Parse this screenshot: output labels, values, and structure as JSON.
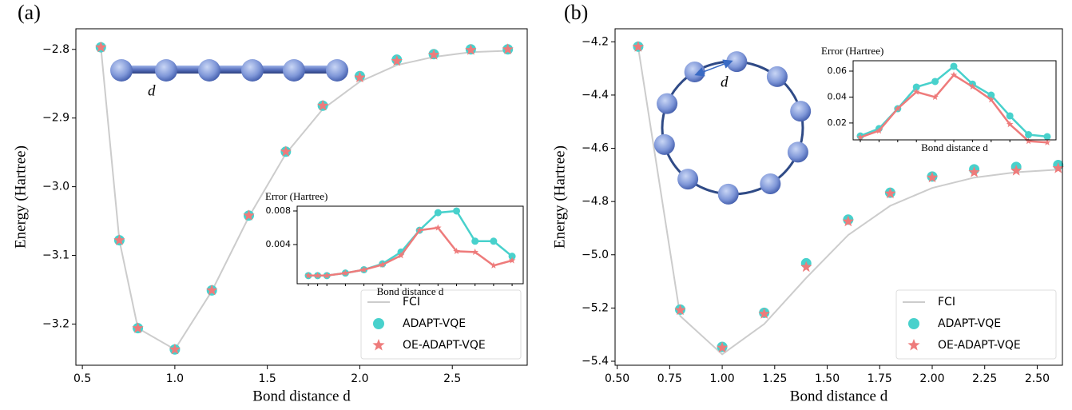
{
  "chart_data": [
    {
      "type": "line",
      "panel_label": "(a)",
      "annotation": "d",
      "xlabel": "Bond distance d",
      "ylabel": "Energy (Hartree)",
      "x": [
        0.6,
        0.7,
        0.8,
        1.0,
        1.2,
        1.4,
        1.6,
        1.8,
        2.0,
        2.2,
        2.4,
        2.6,
        2.8
      ],
      "xlim": [
        0.465,
        2.905
      ],
      "ylim": [
        -3.26,
        -2.77
      ],
      "xticks": [
        0.5,
        {
          "value": 1.0,
          "label": "1.0"
        },
        1.5,
        {
          "value": 2.0,
          "label": "2.0"
        },
        2.5
      ],
      "yticks": [
        {
          "value": -2.8,
          "label": "−2.8"
        },
        {
          "value": -2.9,
          "label": "−2.9"
        },
        {
          "value": -3.0,
          "label": "−3.0"
        },
        {
          "value": -3.1,
          "label": "−3.1"
        },
        {
          "value": -3.2,
          "label": "−3.2"
        }
      ],
      "legend": "lower right",
      "series": [
        {
          "name": "FCI",
          "color": "#cccccc",
          "line": true,
          "marker": null,
          "values": [
            -2.797,
            -3.078,
            -3.206,
            -3.237,
            -3.152,
            -3.044,
            -2.952,
            -2.887,
            -2.847,
            -2.823,
            -2.811,
            -2.804,
            -2.802
          ]
        },
        {
          "name": "ADAPT-VQE",
          "color": "#48d1cc",
          "line": false,
          "marker": "circle",
          "values": [
            -2.797,
            -3.078,
            -3.206,
            -3.237,
            -3.151,
            -3.042,
            -2.949,
            -2.882,
            -2.839,
            -2.815,
            -2.807,
            -2.8,
            -2.8
          ]
        },
        {
          "name": "OE-ADAPT-VQE",
          "color": "#ee7b7b",
          "line": false,
          "marker": "star",
          "values": [
            -2.797,
            -3.078,
            -3.206,
            -3.237,
            -3.151,
            -3.042,
            -2.949,
            -2.882,
            -2.841,
            -2.817,
            -2.808,
            -2.801,
            -2.8
          ]
        }
      ]
    },
    {
      "type": "line",
      "title": "Error (Hartree)",
      "xlabel": "Bond distance d",
      "x": [
        0.6,
        0.7,
        0.8,
        1.0,
        1.2,
        1.4,
        1.6,
        1.8,
        2.0,
        2.2,
        2.4,
        2.6,
        2.8
      ],
      "xlim": [
        0.479,
        2.92
      ],
      "ylim": [
        -0.00067,
        0.00857
      ],
      "yticks": [
        0.004,
        0.008
      ],
      "series": [
        {
          "color": "#48d1cc",
          "line": true,
          "marker": "circle",
          "values": [
            0.0003,
            0.0003,
            0.0003,
            0.0006,
            0.001,
            0.0017,
            0.0031,
            0.0057,
            0.0078,
            0.008,
            0.0044,
            0.0044,
            0.0026
          ]
        },
        {
          "color": "#ee7b7b",
          "line": true,
          "marker": "star",
          "values": [
            0.0003,
            0.0003,
            0.0003,
            0.0006,
            0.001,
            0.0016,
            0.0027,
            0.0057,
            0.006,
            0.0032,
            0.0031,
            0.0015,
            0.0021
          ]
        }
      ]
    },
    {
      "type": "line",
      "panel_label": "(b)",
      "annotation": "d",
      "xlabel": "Bond distance d",
      "ylabel": "Energy (Hartree)",
      "x": [
        0.6,
        0.8,
        1.0,
        1.2,
        1.4,
        1.6,
        1.8,
        2.0,
        2.2,
        2.4,
        2.6
      ],
      "xlim": [
        0.49,
        2.62
      ],
      "ylim": [
        -5.415,
        -4.151
      ],
      "xticks": [
        {
          "value": 0.5,
          "label": "0.50"
        },
        0.75,
        {
          "value": 1.0,
          "label": "1.00"
        },
        1.25,
        {
          "value": 1.5,
          "label": "1.50"
        },
        1.75,
        {
          "value": 2.0,
          "label": "2.00"
        },
        2.25,
        {
          "value": 2.5,
          "label": "2.50"
        }
      ],
      "yticks": [
        {
          "value": -4.2,
          "label": "−4.2"
        },
        {
          "value": -4.4,
          "label": "−4.4"
        },
        {
          "value": -4.6,
          "label": "−4.6"
        },
        {
          "value": -4.8,
          "label": "−4.8"
        },
        {
          "value": -5.0,
          "label": "−5.0"
        },
        {
          "value": -5.2,
          "label": "−5.2"
        },
        {
          "value": -5.4,
          "label": "−5.4"
        }
      ],
      "legend": "lower right",
      "series": [
        {
          "name": "FCI",
          "color": "#cccccc",
          "line": true,
          "marker": null,
          "values": [
            -4.22,
            -5.23,
            -5.374,
            -5.26,
            -5.087,
            -4.926,
            -4.816,
            -4.749,
            -4.71,
            -4.69,
            -4.68
          ]
        },
        {
          "name": "ADAPT-VQE",
          "color": "#48d1cc",
          "line": false,
          "marker": "circle",
          "values": [
            -4.218,
            -5.206,
            -5.346,
            -5.218,
            -5.032,
            -4.868,
            -4.767,
            -4.706,
            -4.679,
            -4.67,
            -4.663
          ]
        },
        {
          "name": "OE-ADAPT-VQE",
          "color": "#ee7b7b",
          "line": false,
          "marker": "star",
          "values": [
            -4.219,
            -5.208,
            -5.349,
            -5.222,
            -5.046,
            -4.875,
            -4.77,
            -4.71,
            -4.69,
            -4.684,
            -4.675
          ]
        }
      ]
    },
    {
      "type": "line",
      "title": "Error (Hartree)",
      "xlabel": "Bond distance d",
      "x": [
        0.6,
        0.8,
        1.0,
        1.2,
        1.4,
        1.6,
        1.8,
        2.0,
        2.2,
        2.4,
        2.6
      ],
      "xlim": [
        0.523,
        2.694
      ],
      "ylim": [
        0.007,
        0.068
      ],
      "yticks": [
        0.02,
        0.04,
        0.06
      ],
      "series": [
        {
          "color": "#48d1cc",
          "line": true,
          "marker": "circle",
          "values": [
            0.01,
            0.0157,
            0.031,
            0.0477,
            0.052,
            0.0637,
            0.05,
            0.0415,
            0.0255,
            0.011,
            0.0095
          ]
        },
        {
          "color": "#ee7b7b",
          "line": true,
          "marker": "star",
          "values": [
            0.009,
            0.014,
            0.031,
            0.044,
            0.04,
            0.057,
            0.048,
            0.038,
            0.019,
            0.006,
            0.005
          ]
        }
      ]
    }
  ]
}
